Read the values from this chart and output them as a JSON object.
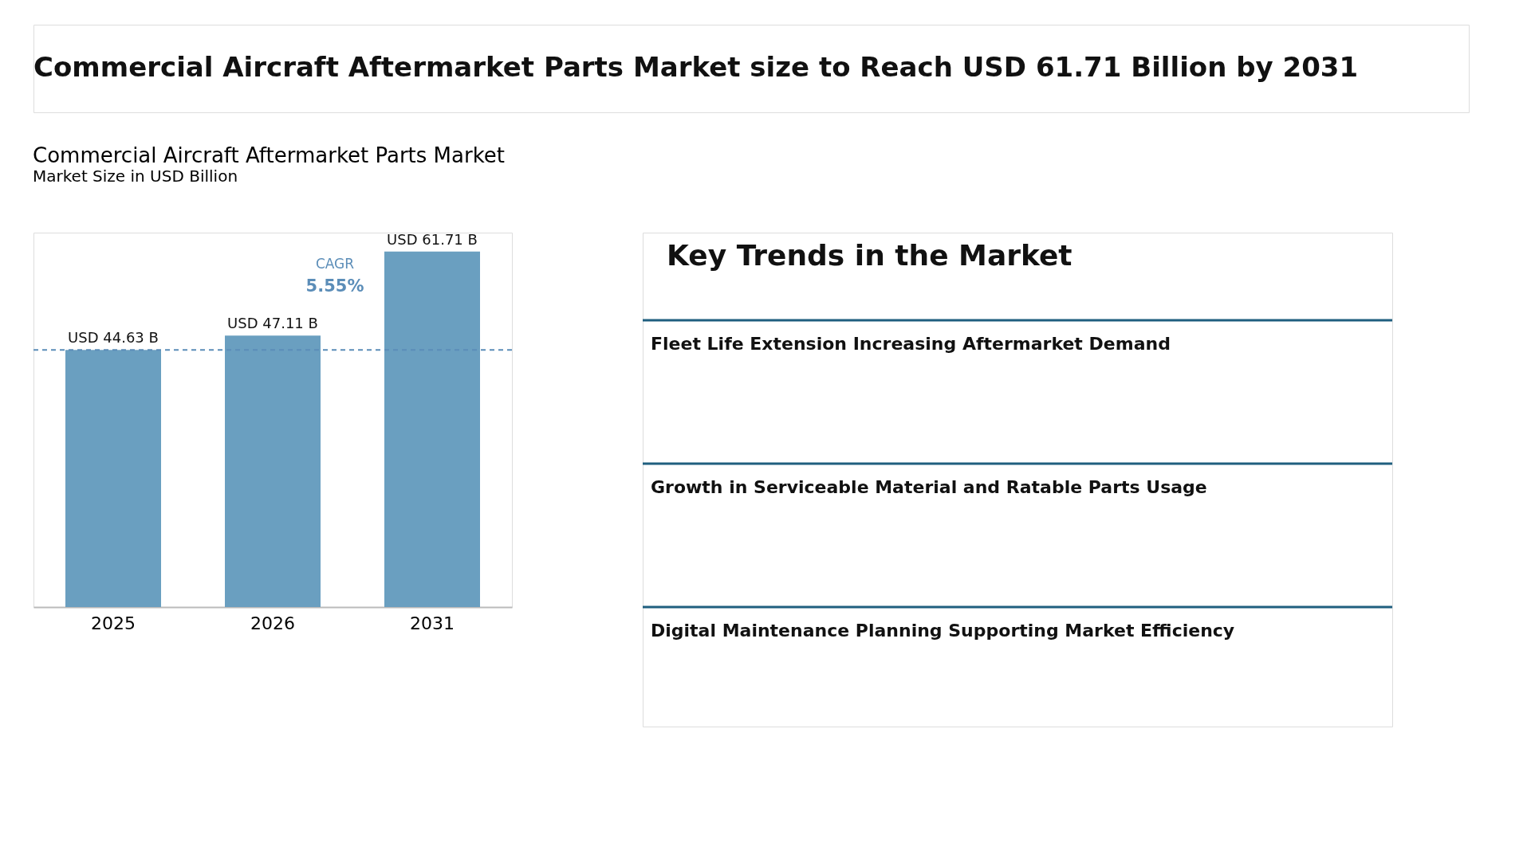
{
  "chart_data": [
    {
      "type": "other",
      "title": "Commercial Aircraft Aftermarket Parts Market size to Reach USD 61.71 Billion by 2031"
    },
    {
      "type": "bar",
      "title": "Commercial Aircraft Aftermarket Parts Market",
      "subtitle": "Market Size in USD Billion",
      "categories": [
        "2025",
        "2026",
        "2031"
      ],
      "values": [
        44.63,
        47.11,
        61.71
      ],
      "value_labels": [
        "USD 44.63 B",
        "USD 47.11 B",
        "USD 61.71 B"
      ],
      "color": "#6a9fc0",
      "ref_lines": [
        {
          "axis": "y",
          "value": 44.63,
          "color": "#5b8db8",
          "line_style": "dashed"
        }
      ],
      "annotations": [
        "CAGR",
        "5.55%"
      ],
      "grid": false
    },
    {
      "type": "other",
      "title": "Key Trends in the Market",
      "annotations": [
        "Fleet Life Extension Increasing Aftermarket Demand",
        "Growth in Serviceable Material and Ratable Parts Usage",
        "Digital Maintenance Planning Supporting Market Efficiency"
      ]
    }
  ]
}
